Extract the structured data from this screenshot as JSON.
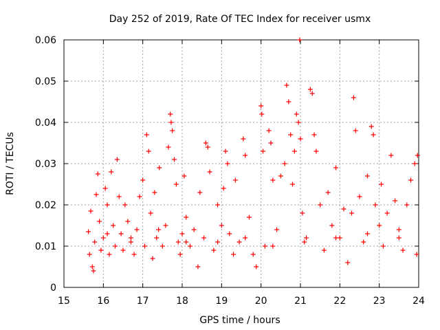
{
  "chart_data": {
    "type": "scatter",
    "title": "Day 252 of 2019, Rate Of TEC Index for receiver usmx",
    "xlabel": "GPS time / hours",
    "ylabel": "ROTI / TECUs",
    "xlim": [
      15,
      24
    ],
    "ylim": [
      0,
      0.06
    ],
    "xticks": [
      15,
      16,
      17,
      18,
      19,
      20,
      21,
      22,
      23,
      24
    ],
    "yticks": [
      0,
      0.01,
      0.02,
      0.03,
      0.04,
      0.05,
      0.06
    ],
    "xtick_labels": [
      "15",
      "16",
      "17",
      "18",
      "19",
      "20",
      "21",
      "22",
      "23",
      "24"
    ],
    "ytick_labels": [
      "0",
      "0.01",
      "0.02",
      "0.03",
      "0.04",
      "0.05",
      "0.06"
    ],
    "grid": true,
    "marker": "+",
    "series": [
      {
        "name": "ROTI",
        "color": "#ff0000",
        "points": [
          [
            15.62,
            0.0135
          ],
          [
            15.65,
            0.008
          ],
          [
            15.68,
            0.0185
          ],
          [
            15.72,
            0.005
          ],
          [
            15.75,
            0.004
          ],
          [
            15.78,
            0.011
          ],
          [
            15.82,
            0.0225
          ],
          [
            15.86,
            0.0275
          ],
          [
            15.9,
            0.016
          ],
          [
            15.94,
            0.009
          ],
          [
            16.0,
            0.012
          ],
          [
            16.05,
            0.024
          ],
          [
            16.1,
            0.02
          ],
          [
            16.15,
            0.008
          ],
          [
            16.2,
            0.028
          ],
          [
            16.25,
            0.015
          ],
          [
            16.3,
            0.01
          ],
          [
            16.35,
            0.031
          ],
          [
            16.4,
            0.022
          ],
          [
            16.45,
            0.013
          ],
          [
            16.5,
            0.009
          ],
          [
            16.55,
            0.02
          ],
          [
            16.62,
            0.016
          ],
          [
            16.7,
            0.011
          ],
          [
            16.78,
            0.008
          ],
          [
            16.85,
            0.014
          ],
          [
            16.92,
            0.022
          ],
          [
            17.0,
            0.026
          ],
          [
            17.05,
            0.01
          ],
          [
            17.1,
            0.037
          ],
          [
            17.15,
            0.033
          ],
          [
            17.2,
            0.018
          ],
          [
            17.25,
            0.007
          ],
          [
            17.3,
            0.023
          ],
          [
            17.35,
            0.012
          ],
          [
            17.42,
            0.029
          ],
          [
            17.5,
            0.01
          ],
          [
            17.58,
            0.015
          ],
          [
            17.65,
            0.034
          ],
          [
            17.7,
            0.042
          ],
          [
            17.72,
            0.04
          ],
          [
            17.75,
            0.038
          ],
          [
            17.8,
            0.031
          ],
          [
            17.85,
            0.025
          ],
          [
            17.9,
            0.011
          ],
          [
            17.95,
            0.008
          ],
          [
            18.0,
            0.013
          ],
          [
            18.05,
            0.027
          ],
          [
            18.1,
            0.017
          ],
          [
            18.2,
            0.01
          ],
          [
            18.3,
            0.014
          ],
          [
            18.4,
            0.005
          ],
          [
            18.45,
            0.023
          ],
          [
            18.55,
            0.012
          ],
          [
            18.6,
            0.035
          ],
          [
            18.65,
            0.034
          ],
          [
            18.7,
            0.028
          ],
          [
            18.8,
            0.009
          ],
          [
            18.9,
            0.02
          ],
          [
            19.0,
            0.015
          ],
          [
            19.05,
            0.024
          ],
          [
            19.1,
            0.033
          ],
          [
            19.15,
            0.03
          ],
          [
            19.2,
            0.013
          ],
          [
            19.3,
            0.008
          ],
          [
            19.35,
            0.026
          ],
          [
            19.45,
            0.011
          ],
          [
            19.55,
            0.036
          ],
          [
            19.6,
            0.032
          ],
          [
            19.7,
            0.017
          ],
          [
            19.8,
            0.008
          ],
          [
            19.88,
            0.005
          ],
          [
            20.0,
            0.044
          ],
          [
            20.02,
            0.042
          ],
          [
            20.05,
            0.033
          ],
          [
            20.1,
            0.01
          ],
          [
            20.2,
            0.038
          ],
          [
            20.25,
            0.035
          ],
          [
            20.3,
            0.026
          ],
          [
            20.4,
            0.014
          ],
          [
            20.5,
            0.027
          ],
          [
            20.6,
            0.03
          ],
          [
            20.65,
            0.049
          ],
          [
            20.7,
            0.045
          ],
          [
            20.75,
            0.037
          ],
          [
            20.8,
            0.025
          ],
          [
            20.85,
            0.033
          ],
          [
            20.9,
            0.042
          ],
          [
            20.95,
            0.04
          ],
          [
            20.98,
            0.06
          ],
          [
            21.0,
            0.036
          ],
          [
            21.05,
            0.018
          ],
          [
            21.15,
            0.012
          ],
          [
            21.25,
            0.048
          ],
          [
            21.3,
            0.047
          ],
          [
            21.35,
            0.037
          ],
          [
            21.4,
            0.033
          ],
          [
            21.5,
            0.02
          ],
          [
            21.6,
            0.009
          ],
          [
            21.7,
            0.023
          ],
          [
            21.8,
            0.015
          ],
          [
            21.9,
            0.029
          ],
          [
            22.0,
            0.012
          ],
          [
            22.1,
            0.019
          ],
          [
            22.2,
            0.006
          ],
          [
            22.3,
            0.018
          ],
          [
            22.35,
            0.046
          ],
          [
            22.4,
            0.038
          ],
          [
            22.5,
            0.022
          ],
          [
            22.6,
            0.011
          ],
          [
            22.7,
            0.027
          ],
          [
            22.8,
            0.039
          ],
          [
            22.85,
            0.037
          ],
          [
            22.9,
            0.02
          ],
          [
            23.0,
            0.015
          ],
          [
            23.05,
            0.025
          ],
          [
            23.1,
            0.01
          ],
          [
            23.2,
            0.018
          ],
          [
            23.3,
            0.032
          ],
          [
            23.4,
            0.021
          ],
          [
            23.5,
            0.012
          ],
          [
            23.6,
            0.009
          ],
          [
            23.7,
            0.02
          ],
          [
            23.8,
            0.026
          ],
          [
            23.9,
            0.03
          ],
          [
            23.97,
            0.032
          ],
          [
            23.95,
            0.008
          ],
          [
            16.1,
            0.013
          ],
          [
            16.7,
            0.012
          ],
          [
            17.4,
            0.014
          ],
          [
            18.1,
            0.011
          ],
          [
            18.9,
            0.011
          ],
          [
            19.6,
            0.012
          ],
          [
            20.3,
            0.01
          ],
          [
            21.1,
            0.011
          ],
          [
            21.9,
            0.012
          ],
          [
            22.7,
            0.013
          ],
          [
            23.5,
            0.014
          ]
        ]
      }
    ]
  }
}
